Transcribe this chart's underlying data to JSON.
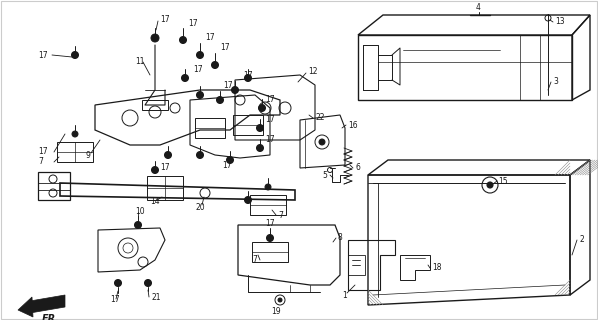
{
  "bg_color": "#ffffff",
  "line_color": "#1a1a1a",
  "fig_width": 5.98,
  "fig_height": 3.2,
  "dpi": 100,
  "border_color": "#cccccc"
}
